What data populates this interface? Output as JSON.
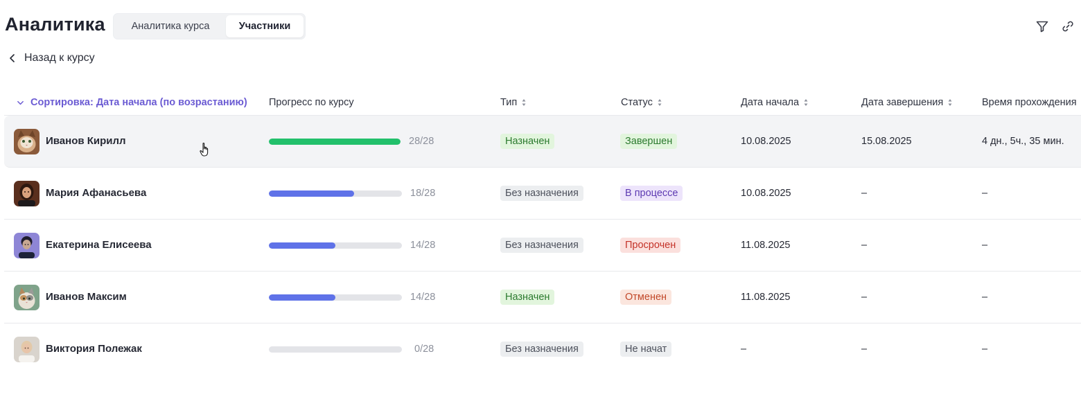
{
  "header": {
    "title": "Аналитика",
    "tabs": [
      {
        "label": "Аналитика курса",
        "active": false
      },
      {
        "label": "Участники",
        "active": true
      }
    ],
    "tools": [
      "filter-icon",
      "link-icon"
    ]
  },
  "back_link": {
    "label": "Назад к курсу",
    "icon": "chevron-left-icon"
  },
  "table": {
    "columns": {
      "sort": "Сортировка: Дата начала (по возрастанию)",
      "progress": "Прогресс по курсу",
      "type": "Тип",
      "status": "Статус",
      "start": "Дата начала",
      "end": "Дата завершения",
      "duration": "Время прохождения"
    },
    "rows": [
      {
        "name": "Иванов Кирилл",
        "progress_done": 28,
        "progress_total": 28,
        "progress_text": "28/28",
        "type": "Назначен",
        "type_color": "green",
        "status": "Завершен",
        "status_color": "green",
        "start": "10.08.2025",
        "end": "15.08.2025",
        "duration": "4 дн., 5ч., 35 мин."
      },
      {
        "name": "Мария Афанасьева",
        "progress_done": 18,
        "progress_total": 28,
        "progress_text": "18/28",
        "type": "Без назначения",
        "type_color": "gray",
        "status": "В процессе",
        "status_color": "purple",
        "start": "10.08.2025",
        "end": "–",
        "duration": "–"
      },
      {
        "name": "Екатерина Елисеева",
        "progress_done": 14,
        "progress_total": 28,
        "progress_text": "14/28",
        "type": "Без назначения",
        "type_color": "gray",
        "status": "Просрочен",
        "status_color": "red",
        "start": "11.08.2025",
        "end": "–",
        "duration": "–"
      },
      {
        "name": "Иванов Максим",
        "progress_done": 14,
        "progress_total": 28,
        "progress_text": "14/28",
        "type": "Назначен",
        "type_color": "green",
        "status": "Отменен",
        "status_color": "orange",
        "start": "11.08.2025",
        "end": "–",
        "duration": "–"
      },
      {
        "name": "Виктория Полежак",
        "progress_done": 0,
        "progress_total": 28,
        "progress_text": "0/28",
        "type": "Без назначения",
        "type_color": "gray",
        "status": "Не начат",
        "status_color": "gray",
        "start": "–",
        "end": "–",
        "duration": "–"
      }
    ]
  },
  "colors": {
    "accent": "#6b5bd3",
    "progress_complete": "#22c06b",
    "progress_partial": "#5f72e8",
    "track": "#e3e4e8"
  }
}
